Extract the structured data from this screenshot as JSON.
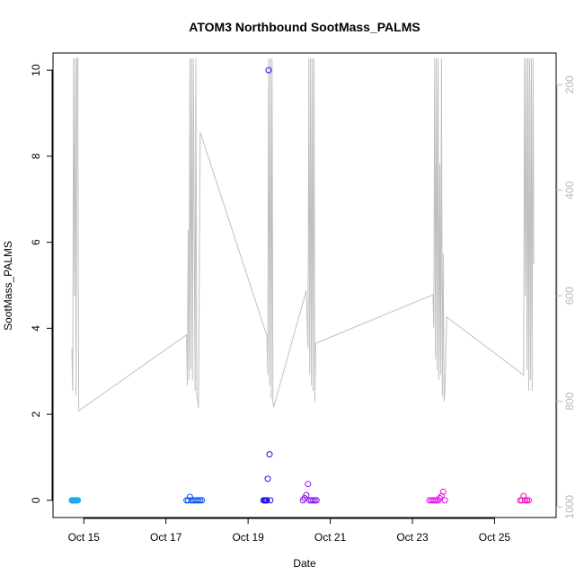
{
  "chart_data": {
    "type": "scatter",
    "title": "ATOM3 Northbound SootMass_PALMS",
    "xlabel": "Date",
    "ylabel": "SootMass_PALMS",
    "xlim": [
      "2016-10-14T06:00",
      "2016-10-26T12:00"
    ],
    "ylim": [
      -0.4,
      10.4
    ],
    "x_ticks": [
      {
        "label": "Oct 15",
        "value": "2016-10-15T00:00"
      },
      {
        "label": "Oct 17",
        "value": "2016-10-17T00:00"
      },
      {
        "label": "Oct 19",
        "value": "2016-10-19T00:00"
      },
      {
        "label": "Oct 21",
        "value": "2016-10-21T00:00"
      },
      {
        "label": "Oct 23",
        "value": "2016-10-23T00:00"
      },
      {
        "label": "Oct 25",
        "value": "2016-10-25T00:00"
      }
    ],
    "y_ticks": [
      0,
      2,
      4,
      6,
      8,
      10
    ],
    "y2_ticks": [
      200,
      400,
      600,
      800,
      1000
    ],
    "y2lim": [
      1020,
      140
    ],
    "y2_reversed": true,
    "grid": false,
    "legend": "none",
    "colors": {
      "pressure_line": "#c0c0c0",
      "right_axis": "#b8b8b8"
    },
    "series": [
      {
        "color": "#17a6f0",
        "points": [
          [
            "2016-10-14T17:00",
            0
          ],
          [
            "2016-10-14T17:30",
            0
          ],
          [
            "2016-10-14T18:00",
            0
          ],
          [
            "2016-10-14T18:30",
            0
          ],
          [
            "2016-10-14T19:00",
            0
          ],
          [
            "2016-10-14T19:30",
            0
          ],
          [
            "2016-10-14T20:00",
            0
          ],
          [
            "2016-10-14T20:30",
            0
          ]
        ]
      },
      {
        "color": "#0d55f0",
        "points": [
          [
            "2016-10-17T12:00",
            0
          ],
          [
            "2016-10-17T13:00",
            0
          ],
          [
            "2016-10-17T14:00",
            0.08
          ],
          [
            "2016-10-17T15:00",
            0
          ],
          [
            "2016-10-17T16:00",
            0
          ],
          [
            "2016-10-17T17:00",
            0
          ],
          [
            "2016-10-17T18:00",
            0
          ],
          [
            "2016-10-17T19:00",
            0
          ],
          [
            "2016-10-17T20:00",
            0
          ],
          [
            "2016-10-17T21:00",
            0
          ]
        ]
      },
      {
        "color": "#2413ea",
        "points": [
          [
            "2016-10-19T09:00",
            0
          ],
          [
            "2016-10-19T09:30",
            0
          ],
          [
            "2016-10-19T10:00",
            0
          ],
          [
            "2016-10-19T10:30",
            0
          ],
          [
            "2016-10-19T11:00",
            0
          ],
          [
            "2016-10-19T11:30",
            0.5
          ],
          [
            "2016-10-19T12:00",
            10.0
          ],
          [
            "2016-10-19T12:30",
            1.07
          ],
          [
            "2016-10-19T13:00",
            0
          ]
        ]
      },
      {
        "color": "#8a13e8",
        "points": [
          [
            "2016-10-20T08:00",
            0
          ],
          [
            "2016-10-20T09:00",
            0.05
          ],
          [
            "2016-10-20T10:00",
            0.12
          ],
          [
            "2016-10-20T11:00",
            0.38
          ],
          [
            "2016-10-20T12:00",
            0
          ],
          [
            "2016-10-20T13:00",
            0
          ],
          [
            "2016-10-20T14:00",
            0
          ],
          [
            "2016-10-20T15:00",
            0
          ],
          [
            "2016-10-20T16:00",
            0
          ]
        ]
      },
      {
        "color": "#e413e8",
        "points": [
          [
            "2016-10-23T10:00",
            0
          ],
          [
            "2016-10-23T11:00",
            0
          ],
          [
            "2016-10-23T12:00",
            0
          ],
          [
            "2016-10-23T13:00",
            0
          ],
          [
            "2016-10-23T14:00",
            0
          ],
          [
            "2016-10-23T15:00",
            0
          ],
          [
            "2016-10-23T16:00",
            0.05
          ],
          [
            "2016-10-23T17:00",
            0.1
          ],
          [
            "2016-10-23T18:00",
            0.2
          ],
          [
            "2016-10-23T19:00",
            0
          ]
        ]
      },
      {
        "color": "#f010c8",
        "points": [
          [
            "2016-10-25T15:00",
            0
          ],
          [
            "2016-10-25T16:00",
            0
          ],
          [
            "2016-10-25T17:00",
            0.1
          ],
          [
            "2016-10-25T18:00",
            0
          ],
          [
            "2016-10-25T19:00",
            0
          ],
          [
            "2016-10-25T20:00",
            0
          ]
        ]
      }
    ],
    "pressure_series": {
      "color": "#c0c0c0",
      "points": [
        [
          "2016-10-14T17:00",
          700
        ],
        [
          "2016-10-14T17:30",
          780
        ],
        [
          "2016-10-14T18:00",
          150
        ],
        [
          "2016-10-14T18:30",
          600
        ],
        [
          "2016-10-14T19:00",
          150
        ],
        [
          "2016-10-14T19:30",
          790
        ],
        [
          "2016-10-14T20:00",
          150
        ],
        [
          "2016-10-14T20:30",
          150
        ],
        [
          "2016-10-14T21:00",
          818
        ],
        [
          "2016-10-17T12:00",
          674
        ],
        [
          "2016-10-17T12:30",
          770
        ],
        [
          "2016-10-17T13:00",
          475
        ],
        [
          "2016-10-17T13:30",
          760
        ],
        [
          "2016-10-17T14:00",
          150
        ],
        [
          "2016-10-17T14:30",
          740
        ],
        [
          "2016-10-17T15:00",
          150
        ],
        [
          "2016-10-17T15:30",
          760
        ],
        [
          "2016-10-17T16:00",
          150
        ],
        [
          "2016-10-17T17:00",
          780
        ],
        [
          "2016-10-17T17:30",
          150
        ],
        [
          "2016-10-17T18:00",
          790
        ],
        [
          "2016-10-17T18:30",
          800
        ],
        [
          "2016-10-17T19:00",
          812
        ],
        [
          "2016-10-17T20:00",
          290
        ],
        [
          "2016-10-19T11:00",
          676
        ],
        [
          "2016-10-19T11:30",
          750
        ],
        [
          "2016-10-19T12:00",
          150
        ],
        [
          "2016-10-19T12:30",
          770
        ],
        [
          "2016-10-19T13:00",
          150
        ],
        [
          "2016-10-19T13:30",
          795
        ],
        [
          "2016-10-19T14:00",
          150
        ],
        [
          "2016-10-19T14:30",
          805
        ],
        [
          "2016-10-19T15:00",
          810
        ],
        [
          "2016-10-20T10:00",
          590
        ],
        [
          "2016-10-20T11:00",
          700
        ],
        [
          "2016-10-20T11:30",
          150
        ],
        [
          "2016-10-20T12:00",
          750
        ],
        [
          "2016-10-20T12:30",
          150
        ],
        [
          "2016-10-20T13:00",
          770
        ],
        [
          "2016-10-20T13:30",
          150
        ],
        [
          "2016-10-20T14:00",
          780
        ],
        [
          "2016-10-20T14:30",
          150
        ],
        [
          "2016-10-20T15:00",
          800
        ],
        [
          "2016-10-20T15:30",
          690
        ],
        [
          "2016-10-23T12:00",
          598
        ],
        [
          "2016-10-23T12:30",
          660
        ],
        [
          "2016-10-23T13:00",
          150
        ],
        [
          "2016-10-23T13:30",
          720
        ],
        [
          "2016-10-23T14:00",
          150
        ],
        [
          "2016-10-23T14:30",
          740
        ],
        [
          "2016-10-23T15:00",
          150
        ],
        [
          "2016-10-23T15:30",
          760
        ],
        [
          "2016-10-23T16:00",
          350
        ],
        [
          "2016-10-23T16:30",
          750
        ],
        [
          "2016-10-23T17:00",
          150
        ],
        [
          "2016-10-23T17:30",
          790
        ],
        [
          "2016-10-23T18:00",
          520
        ],
        [
          "2016-10-23T18:30",
          800
        ],
        [
          "2016-10-23T19:00",
          780
        ],
        [
          "2016-10-23T20:00",
          640
        ],
        [
          "2016-10-25T17:00",
          750
        ],
        [
          "2016-10-25T17:30",
          150
        ],
        [
          "2016-10-25T18:00",
          600
        ],
        [
          "2016-10-25T18:30",
          150
        ],
        [
          "2016-10-25T19:00",
          740
        ],
        [
          "2016-10-25T19:30",
          150
        ],
        [
          "2016-10-25T20:00",
          780
        ],
        [
          "2016-10-25T20:30",
          150
        ],
        [
          "2016-10-25T21:00",
          760
        ],
        [
          "2016-10-25T21:30",
          150
        ],
        [
          "2016-10-25T22:00",
          780
        ],
        [
          "2016-10-25T22:30",
          150
        ],
        [
          "2016-10-25T23:00",
          540
        ]
      ]
    }
  }
}
